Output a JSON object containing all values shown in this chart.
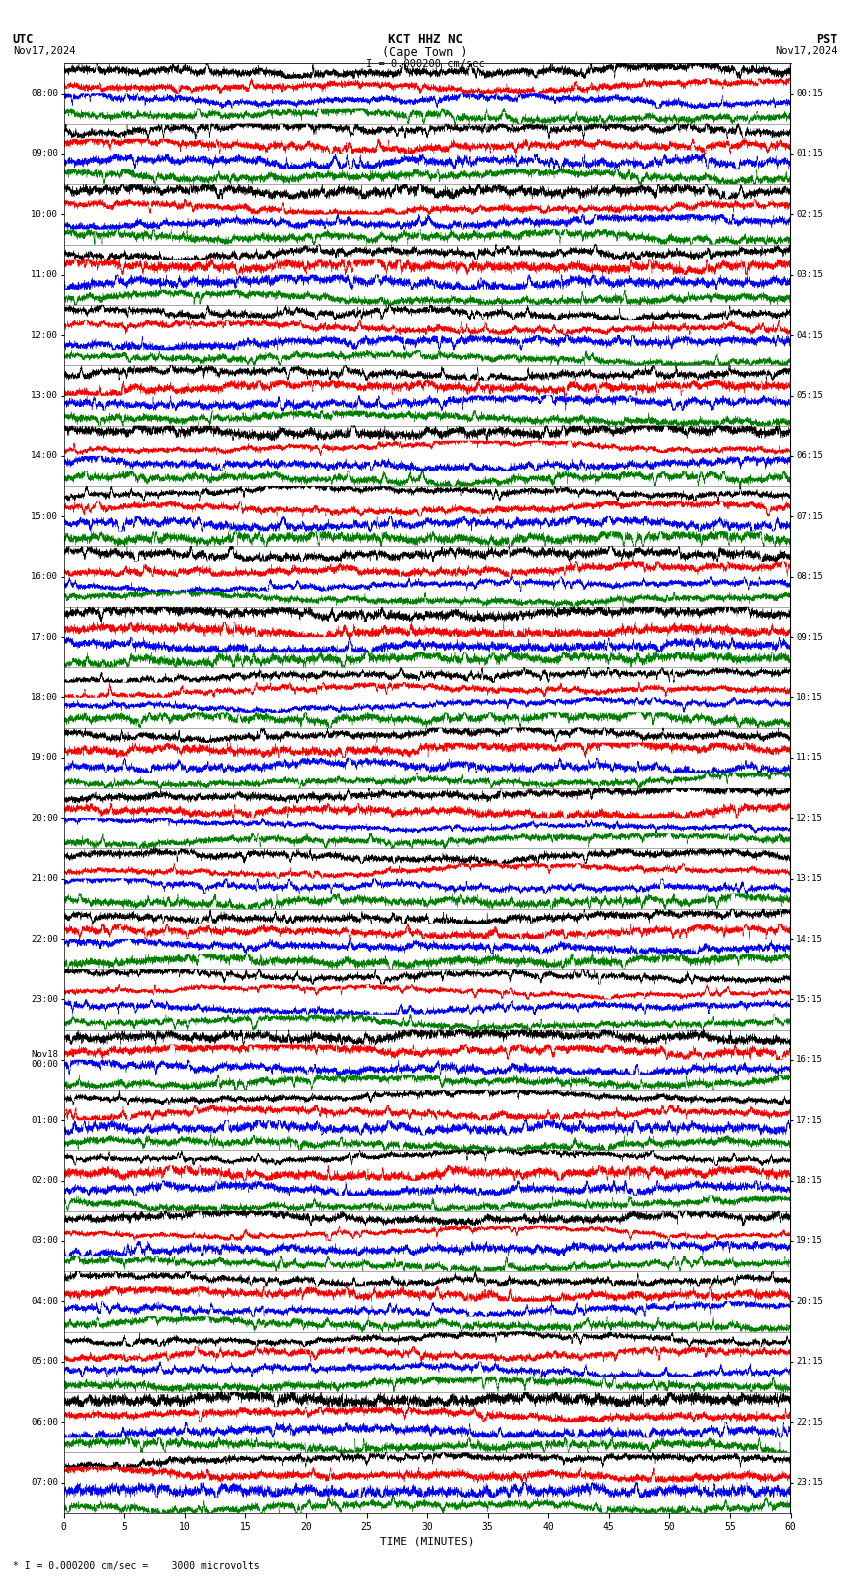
{
  "title_line1": "KCT HHZ NC",
  "title_line2": "(Cape Town )",
  "scale_text": "I = 0.000200 cm/sec",
  "left_label_line1": "UTC",
  "left_label_line2": "Nov17,2024",
  "right_label_line1": "PST",
  "right_label_line2": "Nov17,2024",
  "bottom_label": "TIME (MINUTES)",
  "bottom_scale_text": "* I = 0.000200 cm/sec =    3000 microvolts",
  "utc_times": [
    "08:00",
    "09:00",
    "10:00",
    "11:00",
    "12:00",
    "13:00",
    "14:00",
    "15:00",
    "16:00",
    "17:00",
    "18:00",
    "19:00",
    "20:00",
    "21:00",
    "22:00",
    "23:00",
    "Nov18\n00:00",
    "01:00",
    "02:00",
    "03:00",
    "04:00",
    "05:00",
    "06:00",
    "07:00"
  ],
  "pst_times": [
    "00:15",
    "01:15",
    "02:15",
    "03:15",
    "04:15",
    "05:15",
    "06:15",
    "07:15",
    "08:15",
    "09:15",
    "10:15",
    "11:15",
    "12:15",
    "13:15",
    "14:15",
    "15:15",
    "16:15",
    "17:15",
    "18:15",
    "19:15",
    "20:15",
    "21:15",
    "22:15",
    "23:15"
  ],
  "n_traces": 24,
  "n_subtraces": 4,
  "n_points": 7200,
  "sub_colors": [
    "black",
    "red",
    "blue",
    "green"
  ],
  "background_color": "white",
  "fig_width": 8.5,
  "fig_height": 15.84,
  "noise_seed": 42
}
